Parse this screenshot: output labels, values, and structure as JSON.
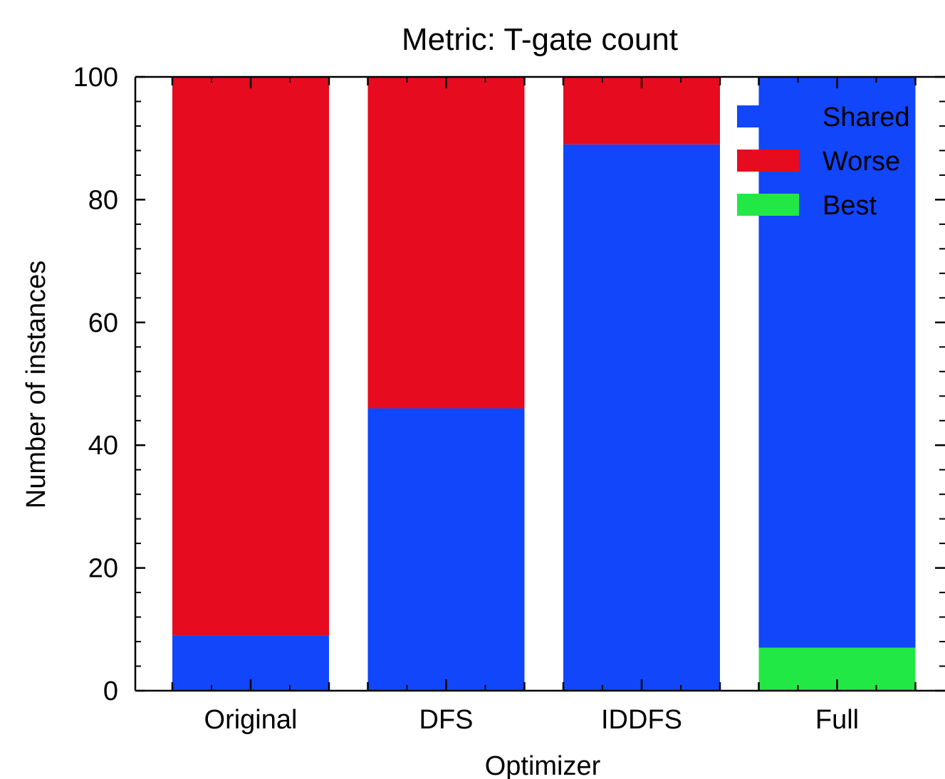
{
  "chart_data": {
    "type": "bar",
    "stacked": true,
    "title": "Metric: T-gate count",
    "xlabel": "Optimizer",
    "ylabel": "Number of instances",
    "ylim": [
      0,
      100
    ],
    "yticks": [
      0,
      20,
      40,
      60,
      80,
      100
    ],
    "yticks_minor": 5,
    "categories": [
      "Original",
      "DFS",
      "IDDFS",
      "Full"
    ],
    "series": [
      {
        "name": "Best",
        "color": "#22e845",
        "values": [
          0,
          0,
          0,
          7
        ]
      },
      {
        "name": "Shared",
        "color": "#1146fb",
        "values": [
          9,
          46,
          89,
          93
        ]
      },
      {
        "name": "Worse",
        "color": "#e60b1e",
        "values": [
          91,
          54,
          11,
          0
        ]
      }
    ],
    "legend_order": [
      "Shared",
      "Worse",
      "Best"
    ],
    "legend_position": "top-right",
    "grid": false
  }
}
